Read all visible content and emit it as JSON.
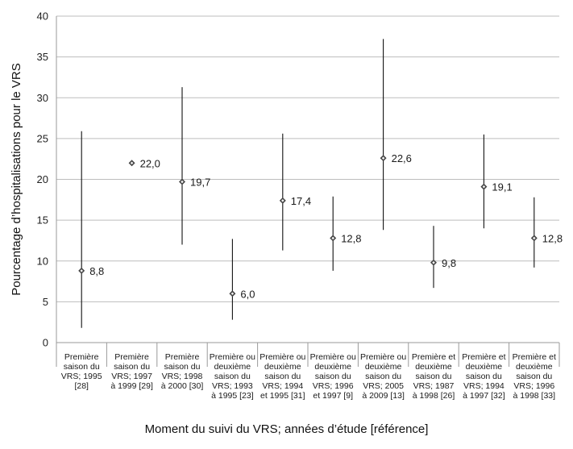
{
  "chart_data": {
    "type": "scatter",
    "subtype": "point-with-range",
    "title": "",
    "xlabel": "Moment du suivi du VRS; années d’étude [référence]",
    "ylabel": "Pourcentage d’hospitalisations pour le VRS",
    "ylim": [
      0,
      40
    ],
    "yticks": [
      "0",
      "5",
      "10",
      "15",
      "20",
      "25",
      "30",
      "35",
      "40"
    ],
    "grid": true,
    "legend": "none",
    "colors": {
      "point": "#444444",
      "whisker": "#111111",
      "grid": "#bdbdbd"
    },
    "categories": [
      [
        "Première",
        "saison du",
        "VRS; 1995",
        "[28]"
      ],
      [
        "Première",
        "saison du",
        "VRS; 1997",
        "à 1999 [29]"
      ],
      [
        "Première",
        "saison du",
        "VRS; 1998",
        "à 2000 [30]"
      ],
      [
        "Première ou",
        "deuxième",
        "saison du",
        "VRS; 1993",
        "à 1995 [23]"
      ],
      [
        "Première ou",
        "deuxième",
        "saison du",
        "VRS; 1994",
        "et 1995 [31]"
      ],
      [
        "Première ou",
        "deuxième",
        "saison du",
        "VRS; 1996",
        "et 1997 [9]"
      ],
      [
        "Première ou",
        "deuxième",
        "saison du",
        "VRS; 2005",
        "à 2009 [13]"
      ],
      [
        "Première et",
        "deuxième",
        "saison du",
        "VRS; 1987",
        "à 1998 [26]"
      ],
      [
        "Première et",
        "deuxième",
        "saison du",
        "VRS; 1994",
        "à 1997 [32]"
      ],
      [
        "Première et",
        "deuxième",
        "saison du",
        "VRS; 1996",
        "à 1998 [33]"
      ]
    ],
    "values": [
      8.8,
      22.0,
      19.7,
      6.0,
      17.4,
      12.8,
      22.6,
      9.8,
      19.1,
      12.8
    ],
    "value_labels": [
      "8,8",
      "22,0",
      "19,7",
      "6,0",
      "17,4",
      "12,8",
      "22,6",
      "9,8",
      "19,1",
      "12,8"
    ],
    "lower": [
      1.8,
      null,
      12.0,
      2.8,
      11.3,
      8.8,
      13.8,
      6.7,
      14.0,
      9.2
    ],
    "upper": [
      25.9,
      null,
      31.3,
      12.7,
      25.6,
      17.9,
      37.2,
      14.3,
      25.5,
      17.8
    ]
  }
}
